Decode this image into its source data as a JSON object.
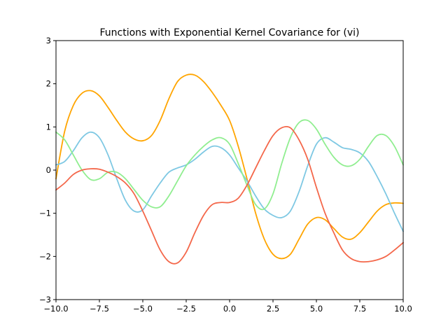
{
  "chart_data": {
    "type": "line",
    "title": "Functions with Exponential Kernel Covariance for (vi)",
    "xlabel": "",
    "ylabel": "",
    "xlim": [
      -10,
      10
    ],
    "ylim": [
      -3,
      3
    ],
    "xticks": [
      -10,
      -7.5,
      -5,
      -2.5,
      0,
      2.5,
      5,
      7.5,
      10
    ],
    "xtick_labels": [
      "−10.0",
      "−7.5",
      "−5.0",
      "−2.5",
      "0.0",
      "2.5",
      "5.0",
      "7.5",
      "10.0"
    ],
    "yticks": [
      -3,
      -2,
      -1,
      0,
      1,
      2,
      3
    ],
    "ytick_labels": [
      "−3",
      "−2",
      "−1",
      "0",
      "1",
      "2",
      "3"
    ],
    "grid": false,
    "series": [
      {
        "color": "#FFA500",
        "x": [
          -10,
          -9.5,
          -9,
          -8.5,
          -8,
          -7.5,
          -7,
          -6.5,
          -6,
          -5.5,
          -5,
          -4.5,
          -4,
          -3.5,
          -3,
          -2.5,
          -2,
          -1.5,
          -1,
          -0.5,
          0,
          0.5,
          1,
          1.5,
          2,
          2.5,
          3,
          3.5,
          4,
          4.5,
          5,
          5.5,
          6,
          6.5,
          7,
          7.5,
          8,
          8.5,
          9,
          9.5,
          10
        ],
        "y": [
          -0.2,
          0.9,
          1.5,
          1.78,
          1.84,
          1.72,
          1.45,
          1.15,
          0.88,
          0.72,
          0.68,
          0.8,
          1.15,
          1.65,
          2.05,
          2.2,
          2.2,
          2.05,
          1.8,
          1.5,
          1.15,
          0.55,
          -0.2,
          -1.0,
          -1.6,
          -1.95,
          -2.05,
          -1.95,
          -1.6,
          -1.25,
          -1.1,
          -1.15,
          -1.35,
          -1.55,
          -1.6,
          -1.45,
          -1.2,
          -0.95,
          -0.8,
          -0.76,
          -0.77
        ]
      },
      {
        "color": "#7EC8E3",
        "x": [
          -10,
          -9.5,
          -9,
          -8.5,
          -8,
          -7.5,
          -7,
          -6.5,
          -6,
          -5.5,
          -5,
          -4.5,
          -4,
          -3.5,
          -3,
          -2.5,
          -2,
          -1.5,
          -1,
          -0.5,
          0,
          0.5,
          1,
          1.5,
          2,
          2.5,
          3,
          3.5,
          4,
          4.5,
          5,
          5.5,
          6,
          6.5,
          7,
          7.5,
          8,
          8.5,
          9,
          9.5,
          10
        ],
        "y": [
          0.12,
          0.2,
          0.45,
          0.75,
          0.88,
          0.75,
          0.35,
          -0.2,
          -0.7,
          -0.95,
          -0.92,
          -0.6,
          -0.3,
          -0.05,
          0.05,
          0.12,
          0.25,
          0.42,
          0.55,
          0.52,
          0.35,
          0.05,
          -0.25,
          -0.6,
          -0.9,
          -1.05,
          -1.1,
          -0.95,
          -0.5,
          0.1,
          0.6,
          0.75,
          0.65,
          0.52,
          0.48,
          0.4,
          0.2,
          -0.15,
          -0.55,
          -1.0,
          -1.42
        ]
      },
      {
        "color": "#90EE90",
        "x": [
          -10,
          -9.5,
          -9,
          -8.5,
          -8,
          -7.5,
          -7,
          -6.5,
          -6,
          -5.5,
          -5,
          -4.5,
          -4,
          -3.5,
          -3,
          -2.5,
          -2,
          -1.5,
          -1,
          -0.5,
          0,
          0.5,
          1,
          1.5,
          2,
          2.5,
          3,
          3.5,
          4,
          4.5,
          5,
          5.5,
          6,
          6.5,
          7,
          7.5,
          8,
          8.5,
          9,
          9.5,
          10
        ],
        "y": [
          0.88,
          0.7,
          0.35,
          0.0,
          -0.22,
          -0.2,
          -0.05,
          -0.05,
          -0.2,
          -0.45,
          -0.7,
          -0.85,
          -0.85,
          -0.6,
          -0.25,
          0.1,
          0.35,
          0.55,
          0.7,
          0.75,
          0.6,
          0.15,
          -0.35,
          -0.8,
          -0.9,
          -0.55,
          0.15,
          0.75,
          1.1,
          1.15,
          0.95,
          0.6,
          0.3,
          0.12,
          0.1,
          0.25,
          0.55,
          0.8,
          0.8,
          0.55,
          0.12
        ]
      },
      {
        "color": "#F4674A",
        "x": [
          -10,
          -9.5,
          -9,
          -8.5,
          -8,
          -7.5,
          -7,
          -6.5,
          -6,
          -5.5,
          -5,
          -4.5,
          -4,
          -3.5,
          -3,
          -2.5,
          -2,
          -1.5,
          -1,
          -0.5,
          0,
          0.5,
          1,
          1.5,
          2,
          2.5,
          3,
          3.5,
          4,
          4.5,
          5,
          5.5,
          6,
          6.5,
          7,
          7.5,
          8,
          8.5,
          9,
          9.5,
          10
        ],
        "y": [
          -0.46,
          -0.3,
          -0.1,
          0.0,
          0.03,
          0.02,
          -0.05,
          -0.15,
          -0.3,
          -0.55,
          -0.95,
          -1.4,
          -1.85,
          -2.12,
          -2.15,
          -1.9,
          -1.45,
          -1.05,
          -0.8,
          -0.75,
          -0.75,
          -0.65,
          -0.35,
          0.05,
          0.45,
          0.8,
          0.98,
          0.98,
          0.7,
          0.25,
          -0.4,
          -1.0,
          -1.45,
          -1.85,
          -2.05,
          -2.12,
          -2.12,
          -2.08,
          -2.0,
          -1.85,
          -1.68
        ]
      }
    ]
  }
}
